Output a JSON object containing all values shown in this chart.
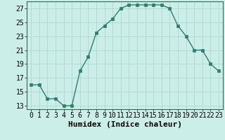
{
  "x": [
    0,
    1,
    2,
    3,
    4,
    5,
    6,
    7,
    8,
    9,
    10,
    11,
    12,
    13,
    14,
    15,
    16,
    17,
    18,
    19,
    20,
    21,
    22,
    23
  ],
  "y": [
    16,
    16,
    14,
    14,
    13,
    13,
    18,
    20,
    23.5,
    24.5,
    25.5,
    27,
    27.5,
    27.5,
    27.5,
    27.5,
    27.5,
    27,
    24.5,
    23,
    21,
    21,
    19,
    18
  ],
  "line_color": "#2e7d6e",
  "marker_color": "#2e7d6e",
  "bg_color": "#cceee8",
  "grid_color": "#aad8d0",
  "xlabel": "Humidex (Indice chaleur)",
  "xlim": [
    -0.5,
    23.5
  ],
  "ylim": [
    12.5,
    28
  ],
  "yticks": [
    13,
    15,
    17,
    19,
    21,
    23,
    25,
    27
  ],
  "xticks": [
    0,
    1,
    2,
    3,
    4,
    5,
    6,
    7,
    8,
    9,
    10,
    11,
    12,
    13,
    14,
    15,
    16,
    17,
    18,
    19,
    20,
    21,
    22,
    23
  ],
  "tick_fontsize": 7.0,
  "xlabel_fontsize": 8.0,
  "linewidth": 1.0,
  "markersize": 2.2
}
